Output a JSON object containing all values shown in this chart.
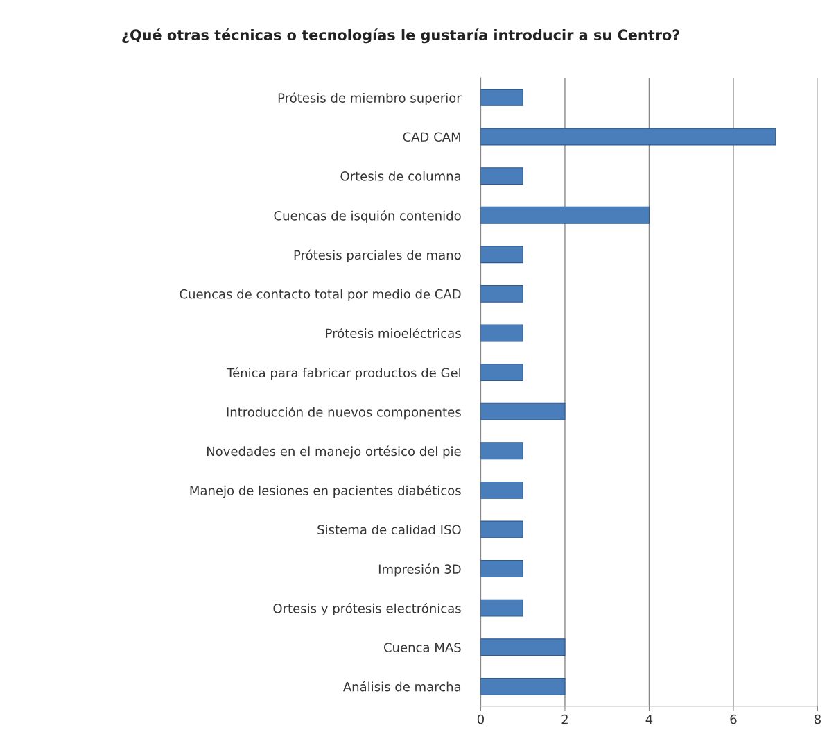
{
  "chart_data": {
    "type": "bar",
    "orientation": "horizontal",
    "title": "¿Qué otras técnicas o tecnologías le gustaría introducir a su Centro?",
    "categories": [
      "Prótesis de miembro superior",
      "CAD CAM",
      "Ortesis de columna",
      "Cuencas de isquión contenido",
      "Prótesis parciales de mano",
      "Cuencas de contacto total por medio de CAD",
      "Prótesis mioeléctricas",
      "Ténica para fabricar productos de Gel",
      "Introducción de nuevos componentes",
      "Novedades en el manejo ortésico del pie",
      "Manejo de lesiones en pacientes diabéticos",
      "Sistema de calidad ISO",
      "Impresión 3D",
      "Ortesis y prótesis electrónicas",
      "Cuenca MAS",
      "Análisis de marcha"
    ],
    "values": [
      1,
      7,
      1,
      4,
      1,
      1,
      1,
      1,
      2,
      1,
      1,
      1,
      1,
      1,
      2,
      2
    ],
    "color": "#4a7ebb",
    "xlim": [
      0,
      8
    ],
    "xticks": [
      0,
      2,
      4,
      6,
      8
    ],
    "grid": "x"
  }
}
